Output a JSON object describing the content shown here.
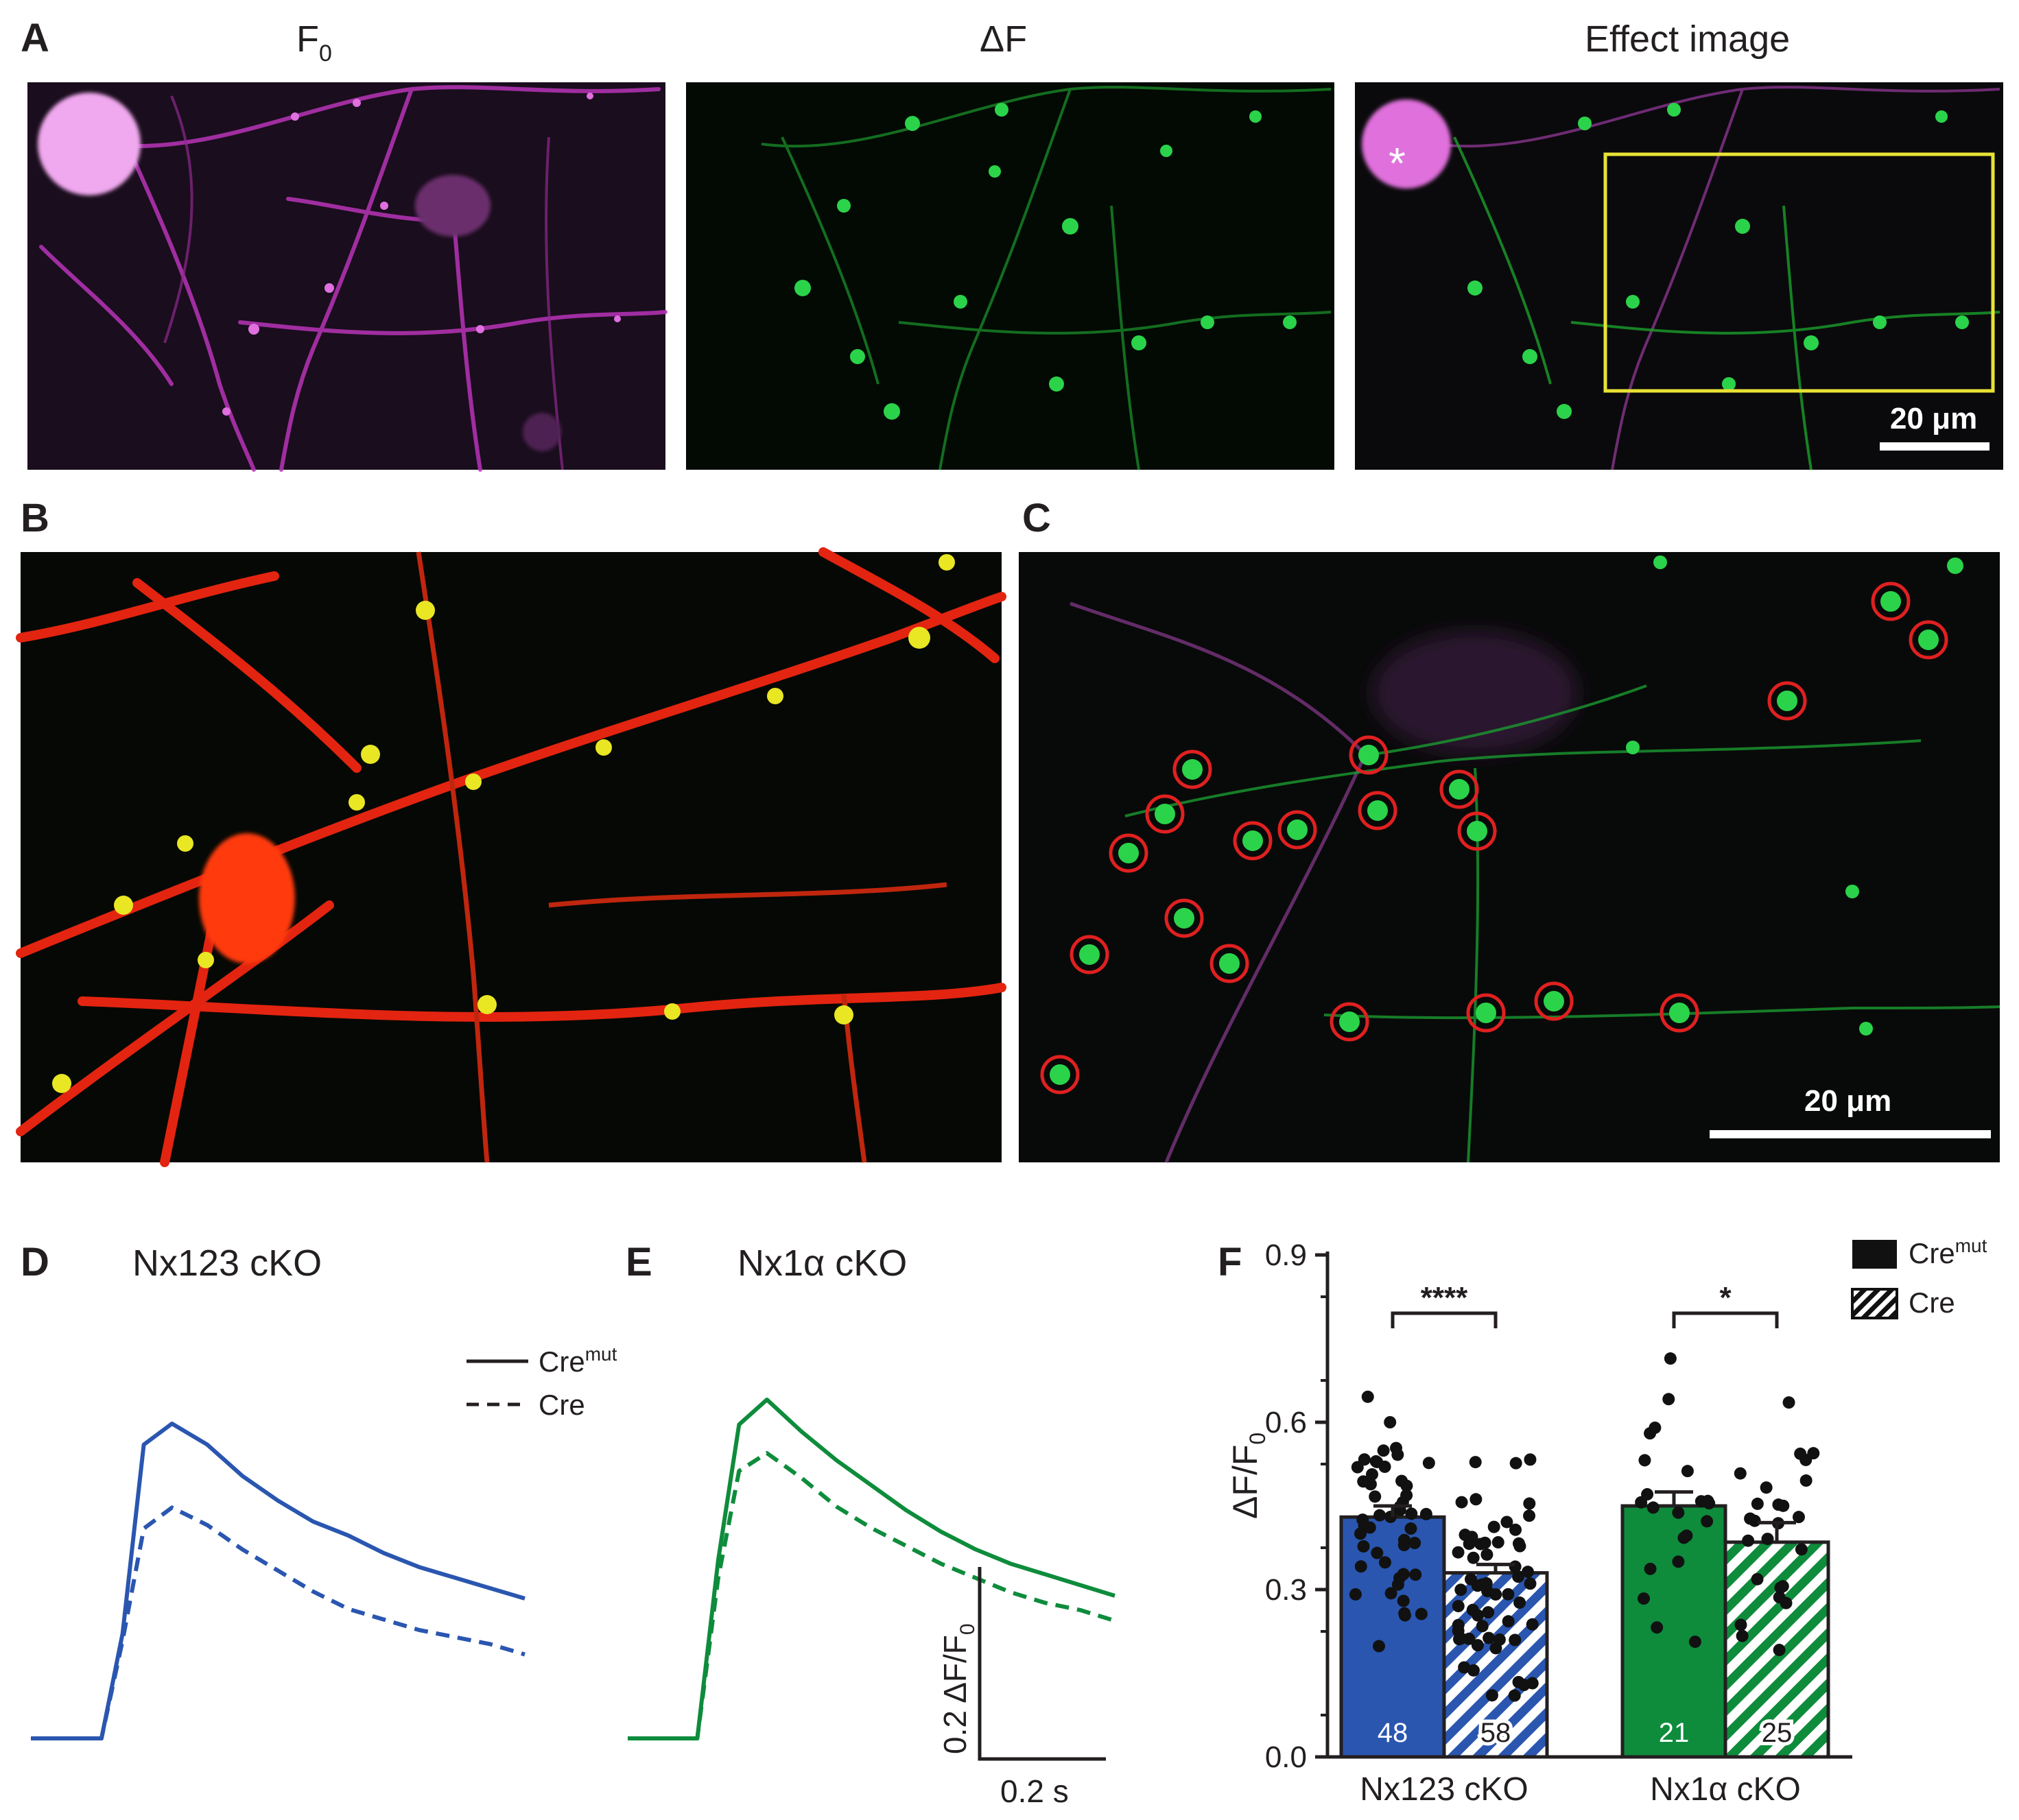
{
  "panels": {
    "A": {
      "label": "A",
      "titles": [
        "F",
        "ΔF",
        "Effect image"
      ],
      "f0_subscript": "0",
      "marker": "*",
      "scalebar": "20 μm"
    },
    "B": {
      "label": "B"
    },
    "C": {
      "label": "C",
      "scalebar": "20 μm"
    },
    "D": {
      "label": "D",
      "title": "Nx123 cKO"
    },
    "E": {
      "label": "E",
      "title": "Nx1α cKO"
    },
    "F": {
      "label": "F"
    }
  },
  "legend_traces": {
    "solid": "Cre",
    "solid_sup": "mut",
    "dashed": "Cre"
  },
  "trace_scalebar": {
    "y_label": "0.2 ΔF/F",
    "y_sub": "0",
    "x_label": "0.2 s"
  },
  "colors": {
    "blue": "#2a56b0",
    "green": "#0e8c3c",
    "magenta": "#d02ad0",
    "yellow_box": "#e8e234",
    "roi": "#e02020"
  },
  "chart_data": [
    {
      "type": "line",
      "panel": "D",
      "title": "Nx123 cKO",
      "x": [
        0,
        0.05,
        0.1,
        0.13,
        0.16,
        0.2,
        0.25,
        0.3,
        0.35,
        0.4,
        0.45,
        0.5,
        0.55,
        0.6,
        0.65,
        0.7
      ],
      "series": [
        {
          "name": "Cremut",
          "style": "solid",
          "values": [
            0,
            0,
            0,
            0.3,
            0.84,
            0.9,
            0.84,
            0.75,
            0.68,
            0.62,
            0.58,
            0.53,
            0.49,
            0.46,
            0.43,
            0.4
          ]
        },
        {
          "name": "Cre",
          "style": "dashed",
          "values": [
            0,
            0,
            0,
            0.28,
            0.6,
            0.66,
            0.61,
            0.54,
            0.48,
            0.42,
            0.37,
            0.34,
            0.31,
            0.29,
            0.27,
            0.24
          ]
        }
      ]
    },
    {
      "type": "line",
      "panel": "E",
      "title": "Nx1α cKO",
      "x": [
        0,
        0.05,
        0.1,
        0.13,
        0.16,
        0.2,
        0.25,
        0.3,
        0.35,
        0.4,
        0.45,
        0.5,
        0.55,
        0.6,
        0.65,
        0.7
      ],
      "series": [
        {
          "name": "Cremut",
          "style": "solid",
          "values": [
            0,
            0,
            0,
            0.5,
            0.88,
            0.95,
            0.86,
            0.78,
            0.71,
            0.64,
            0.58,
            0.53,
            0.49,
            0.46,
            0.43,
            0.4
          ]
        },
        {
          "name": "Cre",
          "style": "dashed",
          "values": [
            0,
            0,
            0,
            0.45,
            0.75,
            0.8,
            0.73,
            0.65,
            0.59,
            0.54,
            0.49,
            0.45,
            0.41,
            0.38,
            0.36,
            0.33
          ]
        }
      ]
    },
    {
      "type": "bar",
      "panel": "F",
      "ylabel": "ΔF/F",
      "ylabel_sub": "0",
      "ylim": [
        0,
        0.9
      ],
      "yticks": [
        0.0,
        0.3,
        0.6,
        0.9
      ],
      "categories": [
        "Nx123 cKO",
        "Nx1α cKO"
      ],
      "legend": [
        {
          "label": "Cre",
          "sup": "mut",
          "fill": "solid"
        },
        {
          "label": "Cre",
          "fill": "hatched"
        }
      ],
      "series": [
        {
          "name": "Cremut",
          "values": [
            0.43,
            0.45
          ],
          "sem": [
            0.02,
            0.025
          ],
          "n": [
            "48",
            "21"
          ]
        },
        {
          "name": "Cre",
          "values": [
            0.33,
            0.385
          ],
          "sem": [
            0.015,
            0.035
          ],
          "n": [
            "58",
            "25"
          ]
        }
      ],
      "significance": [
        "****",
        "*"
      ]
    }
  ]
}
